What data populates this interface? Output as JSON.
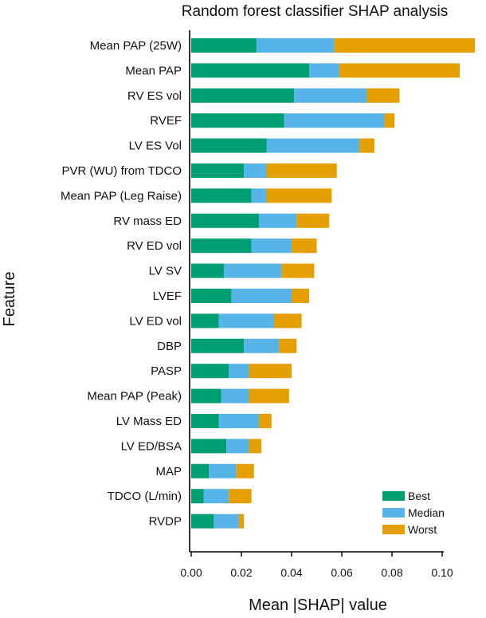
{
  "chart_data": {
    "type": "bar",
    "orientation": "horizontal",
    "stacked": true,
    "title": "Random forest classifier SHAP analysis",
    "xlabel": "Mean |SHAP| value",
    "ylabel": "Feature",
    "xlim": [
      0,
      0.115
    ],
    "xticks": [
      "0.00",
      "0.02",
      "0.04",
      "0.06",
      "0.08",
      "0.10"
    ],
    "xtick_values": [
      0,
      0.02,
      0.04,
      0.06,
      0.08,
      0.1
    ],
    "legend_position": "bottom-right",
    "categories": [
      "Mean PAP (25W)",
      "Mean PAP",
      "RV ES vol",
      "RVEF",
      "LV ES Vol",
      "PVR (WU) from TDCO",
      "Mean PAP (Leg Raise)",
      "RV mass ED",
      "RV ED vol",
      "LV SV",
      "LVEF",
      "LV ED vol",
      "DBP",
      "PASP",
      "Mean PAP (Peak)",
      "LV Mass ED",
      "LV ED/BSA",
      "MAP",
      "TDCO (L/min)",
      "RVDP"
    ],
    "series": [
      {
        "name": "Best",
        "color": "#009E73",
        "values": [
          0.026,
          0.047,
          0.041,
          0.037,
          0.03,
          0.021,
          0.024,
          0.027,
          0.024,
          0.013,
          0.016,
          0.011,
          0.021,
          0.015,
          0.012,
          0.011,
          0.014,
          0.007,
          0.005,
          0.009
        ]
      },
      {
        "name": "Median",
        "color": "#56B4E9",
        "values": [
          0.031,
          0.012,
          0.029,
          0.04,
          0.037,
          0.009,
          0.006,
          0.015,
          0.016,
          0.023,
          0.024,
          0.022,
          0.014,
          0.008,
          0.011,
          0.016,
          0.009,
          0.011,
          0.01,
          0.01
        ]
      },
      {
        "name": "Worst",
        "color": "#E69F00",
        "values": [
          0.056,
          0.048,
          0.013,
          0.004,
          0.006,
          0.028,
          0.026,
          0.013,
          0.01,
          0.013,
          0.007,
          0.011,
          0.007,
          0.017,
          0.016,
          0.005,
          0.005,
          0.007,
          0.009,
          0.002
        ]
      }
    ]
  }
}
